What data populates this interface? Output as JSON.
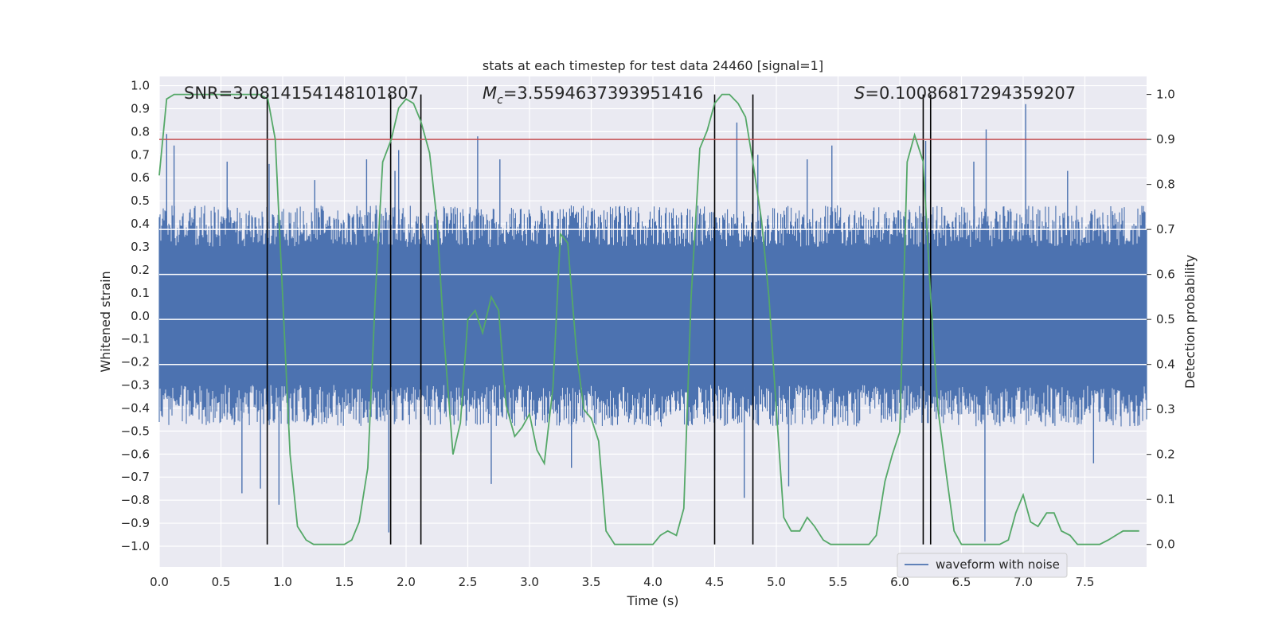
{
  "chart_data": {
    "type": "line",
    "title": "stats at each timestep for test data 24460 [signal=1]",
    "xlabel": "Time (s)",
    "ylabel_left": "Whitened strain",
    "ylabel_right": "Detection probability",
    "xlim": [
      0.0,
      8.0
    ],
    "ylim_left": [
      -1.09,
      1.04
    ],
    "ylim_right": [
      -0.05,
      1.04
    ],
    "grid": true,
    "x_ticks": [
      0.0,
      0.5,
      1.0,
      1.5,
      2.0,
      2.5,
      3.0,
      3.5,
      4.0,
      4.5,
      5.0,
      5.5,
      6.0,
      6.5,
      7.0,
      7.5
    ],
    "x_tick_labels": [
      "0.0",
      "0.5",
      "1.0",
      "1.5",
      "2.0",
      "2.5",
      "3.0",
      "3.5",
      "4.0",
      "4.5",
      "5.0",
      "5.5",
      "6.0",
      "6.5",
      "7.0",
      "7.5"
    ],
    "y_left_ticks": [
      1.0,
      0.9,
      0.8,
      0.7,
      0.6,
      0.5,
      0.4,
      0.3,
      0.2,
      0.1,
      0.0,
      -0.1,
      -0.2,
      -0.3,
      -0.4,
      -0.5,
      -0.6,
      -0.7,
      -0.8,
      -0.9,
      -1.0
    ],
    "y_left_tick_labels": [
      "1.0",
      "0.9",
      "0.8",
      "0.7",
      "0.6",
      "0.5",
      "0.4",
      "0.3",
      "0.2",
      "0.1",
      "0.0",
      "−0.1",
      "−0.2",
      "−0.3",
      "−0.4",
      "−0.5",
      "−0.6",
      "−0.7",
      "−0.8",
      "−0.9",
      "−1.0"
    ],
    "y_right_ticks": [
      1.0,
      0.9,
      0.8,
      0.7,
      0.6,
      0.5,
      0.4,
      0.3,
      0.2,
      0.1,
      0.0
    ],
    "y_right_tick_labels": [
      "1.0",
      "0.9",
      "0.8",
      "0.7",
      "0.6",
      "0.5",
      "0.4",
      "0.3",
      "0.2",
      "0.1",
      "0.0"
    ],
    "annotations": {
      "snr": "SNR=3.0814154148101807",
      "mc_symbol": "M",
      "mc_sub": "c",
      "mc_value": "=3.5594637393951416",
      "s_symbol": "S",
      "s_value": "=0.10086817294359207"
    },
    "legend": {
      "location": "lower-right",
      "entries": [
        "waveform with noise"
      ]
    },
    "threshold_line": {
      "axis": "right",
      "value": 0.9,
      "color": "#c44e52"
    },
    "white_hlines_right": [
      0.4,
      0.5,
      0.6,
      0.7
    ],
    "vertical_lines_x": [
      0.875,
      1.875,
      2.12,
      4.5,
      4.81,
      6.19,
      6.25
    ],
    "waveform": {
      "name": "waveform with noise",
      "color": "#4c72b0",
      "x_start": 0.0,
      "x_end": 8.0,
      "typical_range": [
        -0.4,
        0.4
      ],
      "spikes": [
        {
          "x": 0.06,
          "y": 0.79
        },
        {
          "x": 0.12,
          "y": 0.74
        },
        {
          "x": 0.55,
          "y": 0.67
        },
        {
          "x": 0.67,
          "y": -0.77
        },
        {
          "x": 0.82,
          "y": -0.75
        },
        {
          "x": 0.89,
          "y": 0.66
        },
        {
          "x": 0.97,
          "y": -0.82
        },
        {
          "x": 1.26,
          "y": 0.59
        },
        {
          "x": 1.68,
          "y": 0.68
        },
        {
          "x": 1.86,
          "y": -0.94
        },
        {
          "x": 1.91,
          "y": 0.63
        },
        {
          "x": 1.94,
          "y": 0.72
        },
        {
          "x": 2.12,
          "y": -0.59
        },
        {
          "x": 2.58,
          "y": 0.78
        },
        {
          "x": 2.69,
          "y": -0.73
        },
        {
          "x": 2.76,
          "y": 0.68
        },
        {
          "x": 3.34,
          "y": -0.66
        },
        {
          "x": 4.5,
          "y": -0.67
        },
        {
          "x": 4.68,
          "y": 0.84
        },
        {
          "x": 4.74,
          "y": -0.79
        },
        {
          "x": 4.85,
          "y": 0.7
        },
        {
          "x": 5.1,
          "y": -0.74
        },
        {
          "x": 5.25,
          "y": 0.68
        },
        {
          "x": 5.45,
          "y": 0.74
        },
        {
          "x": 6.21,
          "y": 0.76
        },
        {
          "x": 6.6,
          "y": 0.67
        },
        {
          "x": 6.7,
          "y": 0.81
        },
        {
          "x": 6.69,
          "y": -0.98
        },
        {
          "x": 7.02,
          "y": 0.92
        },
        {
          "x": 7.36,
          "y": 0.63
        },
        {
          "x": 7.57,
          "y": -0.64
        }
      ]
    },
    "probability": {
      "name": "detection probability",
      "color": "#55a868",
      "x": [
        0.0,
        0.06,
        0.12,
        0.19,
        0.25,
        0.31,
        0.38,
        0.44,
        0.5,
        0.56,
        0.62,
        0.69,
        0.75,
        0.81,
        0.88,
        0.94,
        1.0,
        1.06,
        1.12,
        1.19,
        1.25,
        1.31,
        1.38,
        1.44,
        1.5,
        1.56,
        1.62,
        1.69,
        1.75,
        1.81,
        1.88,
        1.94,
        2.0,
        2.06,
        2.12,
        2.19,
        2.25,
        2.31,
        2.38,
        2.44,
        2.5,
        2.56,
        2.62,
        2.69,
        2.75,
        2.81,
        2.88,
        2.94,
        3.0,
        3.06,
        3.12,
        3.19,
        3.25,
        3.31,
        3.38,
        3.44,
        3.5,
        3.56,
        3.62,
        3.69,
        3.75,
        3.81,
        3.88,
        3.94,
        4.0,
        4.06,
        4.12,
        4.19,
        4.25,
        4.31,
        4.38,
        4.44,
        4.5,
        4.56,
        4.62,
        4.69,
        4.75,
        4.81,
        4.88,
        4.94,
        5.0,
        5.06,
        5.12,
        5.19,
        5.25,
        5.31,
        5.38,
        5.44,
        5.5,
        5.56,
        5.62,
        5.69,
        5.75,
        5.81,
        5.88,
        5.94,
        6.0,
        6.06,
        6.12,
        6.19,
        6.25,
        6.31,
        6.38,
        6.44,
        6.5,
        6.56,
        6.62,
        6.69,
        6.75,
        6.81,
        6.88,
        6.94,
        7.0,
        7.06,
        7.12,
        7.19,
        7.25,
        7.31,
        7.38,
        7.44,
        7.5,
        7.56,
        7.62,
        7.69,
        7.75,
        7.81,
        7.88,
        7.94
      ],
      "y": [
        0.82,
        0.99,
        1.0,
        1.0,
        1.0,
        1.0,
        1.0,
        1.0,
        1.0,
        1.0,
        1.0,
        1.0,
        1.0,
        1.0,
        0.99,
        0.9,
        0.55,
        0.2,
        0.04,
        0.01,
        0.0,
        0.0,
        0.0,
        0.0,
        0.0,
        0.01,
        0.05,
        0.17,
        0.55,
        0.85,
        0.9,
        0.97,
        0.99,
        0.98,
        0.94,
        0.87,
        0.72,
        0.45,
        0.2,
        0.27,
        0.5,
        0.52,
        0.47,
        0.55,
        0.52,
        0.31,
        0.24,
        0.26,
        0.29,
        0.21,
        0.18,
        0.35,
        0.69,
        0.67,
        0.43,
        0.3,
        0.28,
        0.23,
        0.03,
        0.0,
        0.0,
        0.0,
        0.0,
        0.0,
        0.0,
        0.02,
        0.03,
        0.02,
        0.08,
        0.55,
        0.88,
        0.92,
        0.98,
        1.0,
        1.0,
        0.98,
        0.95,
        0.85,
        0.72,
        0.55,
        0.3,
        0.06,
        0.03,
        0.03,
        0.06,
        0.04,
        0.01,
        0.0,
        0.0,
        0.0,
        0.0,
        0.0,
        0.0,
        0.02,
        0.14,
        0.2,
        0.25,
        0.85,
        0.91,
        0.85,
        0.55,
        0.3,
        0.15,
        0.03,
        0.0,
        0.0,
        0.0,
        0.0,
        0.0,
        0.0,
        0.01,
        0.07,
        0.11,
        0.05,
        0.04,
        0.07,
        0.07,
        0.03,
        0.02,
        0.0,
        0.0,
        0.0,
        0.0,
        0.01,
        0.02,
        0.03,
        0.03,
        0.03
      ]
    }
  }
}
